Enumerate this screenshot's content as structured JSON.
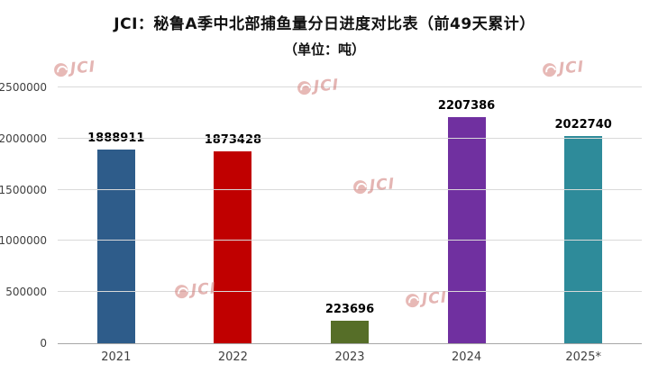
{
  "chart_data": {
    "type": "bar",
    "title": "JCI：秘鲁A季中北部捕鱼量分日进度对比表（前49天累计）",
    "subtitle": "（单位：吨）",
    "categories": [
      "2021",
      "2022",
      "2023",
      "2024",
      "2025*"
    ],
    "values": [
      1888911,
      1873428,
      223696,
      2207386,
      2022740
    ],
    "value_labels": [
      "1888911",
      "1873428",
      "223696",
      "2207386",
      "2022740"
    ],
    "colors": [
      "#2E5C8A",
      "#C00000",
      "#566E28",
      "#7030A0",
      "#2E8B9A"
    ],
    "ylim": [
      0,
      2500000
    ],
    "y_ticks": [
      0,
      500000,
      1000000,
      1500000,
      2000000,
      2500000
    ],
    "grid": true,
    "legend": "none"
  },
  "watermark": {
    "text": "JCI"
  }
}
